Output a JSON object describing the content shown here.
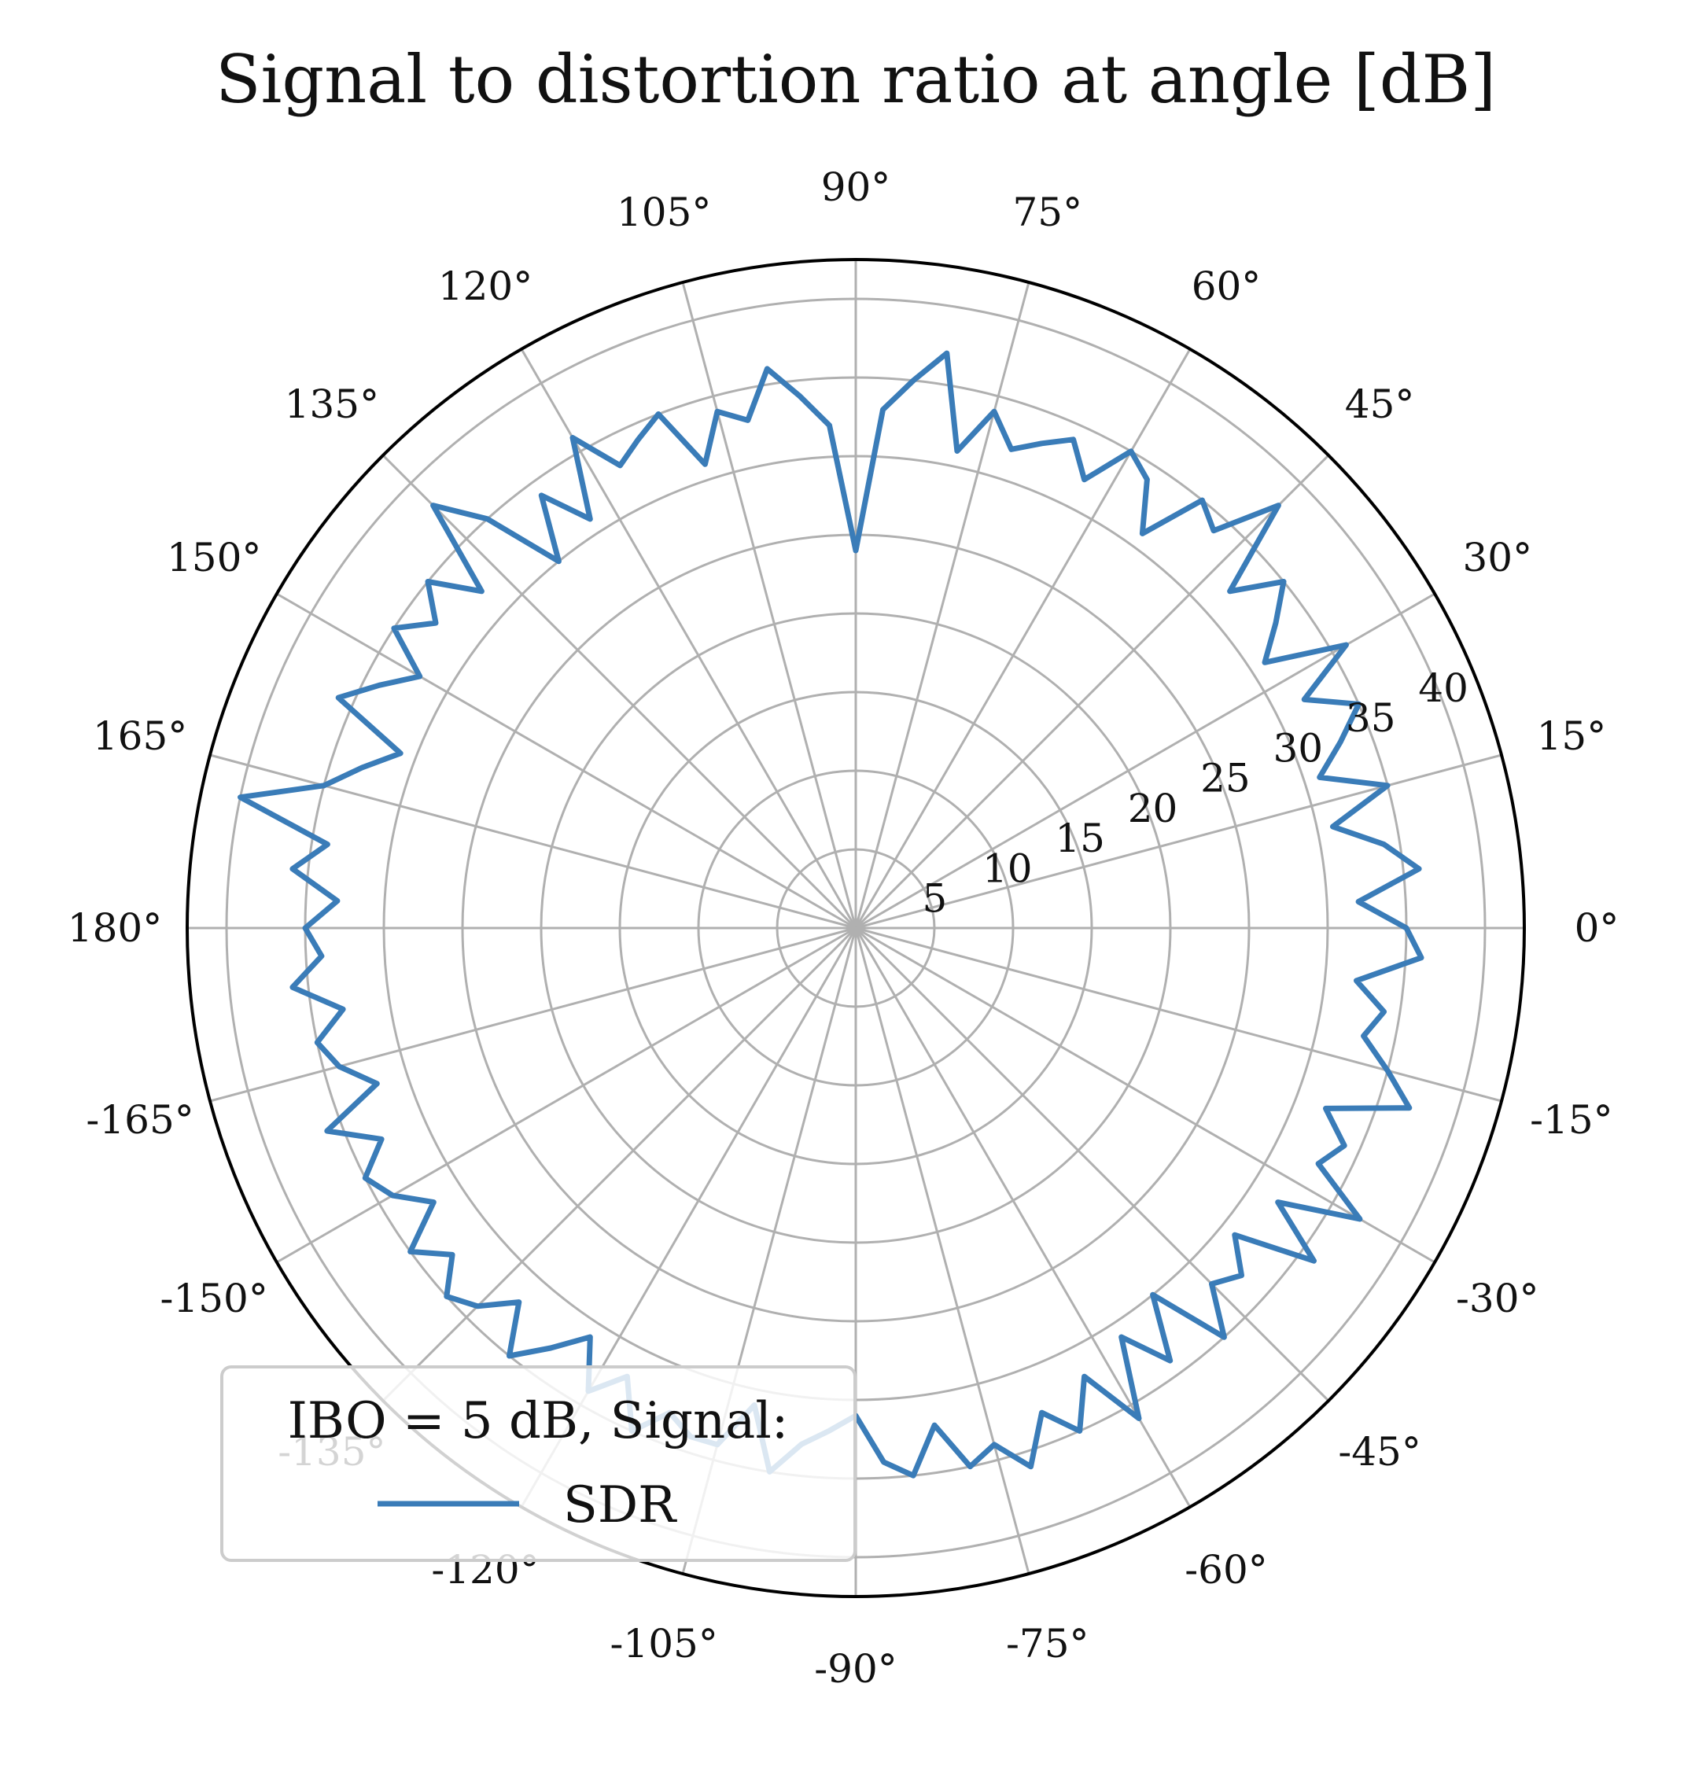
{
  "chart_data": {
    "type": "line",
    "projection": "polar",
    "title": "Signal to distortion ratio at angle [dB]",
    "angle_unit": "degrees",
    "angle_ticks": [
      0,
      15,
      30,
      45,
      60,
      75,
      90,
      105,
      120,
      135,
      150,
      165,
      180,
      -165,
      -150,
      -135,
      -120,
      -105,
      -90,
      -75,
      -60,
      -45,
      -30,
      -15
    ],
    "angle_tick_labels": [
      "0°",
      "15°",
      "30°",
      "45°",
      "60°",
      "75°",
      "90°",
      "105°",
      "120°",
      "135°",
      "150°",
      "165°",
      "180°",
      "-165°",
      "-150°",
      "-135°",
      "-120°",
      "-105°",
      "-90°",
      "-75°",
      "-60°",
      "-45°",
      "-30°",
      "-15°"
    ],
    "radial_ticks": [
      5,
      10,
      15,
      20,
      25,
      30,
      35,
      40
    ],
    "radial_tick_labels": [
      "5",
      "10",
      "15",
      "20",
      "25",
      "30",
      "35",
      "40"
    ],
    "rlim": [
      0,
      42.5
    ],
    "grid": true,
    "legend": {
      "title": "IBO = 5 dB, Signal:",
      "placement": "lower-left",
      "entries": [
        "SDR"
      ]
    },
    "series": [
      {
        "name": "SDR",
        "color": "#3a7cb8",
        "theta": [
          -90,
          -87,
          -84,
          -81,
          -78,
          -75,
          -72,
          -69,
          -66,
          -63,
          -60,
          -57,
          -54,
          -51,
          -48,
          -45,
          -42,
          -39,
          -36,
          -33,
          -30,
          -27,
          -24,
          -21,
          -18,
          -15,
          -12,
          -9,
          -6,
          -3,
          0,
          3,
          6,
          9,
          12,
          15,
          18,
          21,
          24,
          27,
          30,
          33,
          36,
          39,
          42,
          45,
          48,
          51,
          54,
          57,
          60,
          63,
          66,
          69,
          72,
          75,
          78,
          81,
          84,
          87,
          90,
          93,
          96,
          99,
          102,
          105,
          108,
          111,
          114,
          117,
          120,
          123,
          126,
          129,
          132,
          135,
          138,
          141,
          144,
          147,
          150,
          153,
          156,
          159,
          162,
          165,
          168,
          171,
          174,
          177,
          180,
          -177,
          -174,
          -171,
          -168,
          -165,
          -162,
          -159,
          -156,
          -153,
          -150,
          -147,
          -144,
          -141,
          -138,
          -135,
          -132,
          -129,
          -126,
          -123,
          -120,
          -117,
          -114,
          -111,
          -108,
          -105,
          -102,
          -99,
          -96,
          -93,
          -90
        ],
        "r": [
          31,
          34,
          35,
          32,
          35,
          34,
          36,
          33,
          35,
          32,
          36,
          31,
          34,
          30,
          35,
          32,
          33,
          31,
          36,
          32,
          37,
          33,
          34,
          32,
          37,
          35,
          33,
          34,
          32,
          36,
          35,
          32,
          36,
          34,
          31,
          35,
          31,
          33,
          35,
          32,
          36,
          31,
          33,
          35,
          32,
          38,
          34,
          35,
          31,
          34,
          35,
          32,
          34,
          33,
          32,
          34,
          31,
          37,
          35,
          33,
          24,
          32,
          34,
          36,
          33,
          34,
          31,
          35,
          34,
          33,
          36,
          31,
          34,
          30,
          35,
          38,
          32,
          35,
          33,
          35,
          32,
          34,
          36,
          31,
          33,
          35,
          40,
          34,
          36,
          33,
          35,
          34,
          36,
          33,
          35,
          34,
          32,
          36,
          33,
          35,
          34,
          32,
          35,
          33,
          35,
          34,
          32,
          35,
          33,
          31,
          34,
          32,
          35,
          33,
          34,
          34,
          31,
          35,
          33,
          32,
          31
        ]
      }
    ]
  }
}
